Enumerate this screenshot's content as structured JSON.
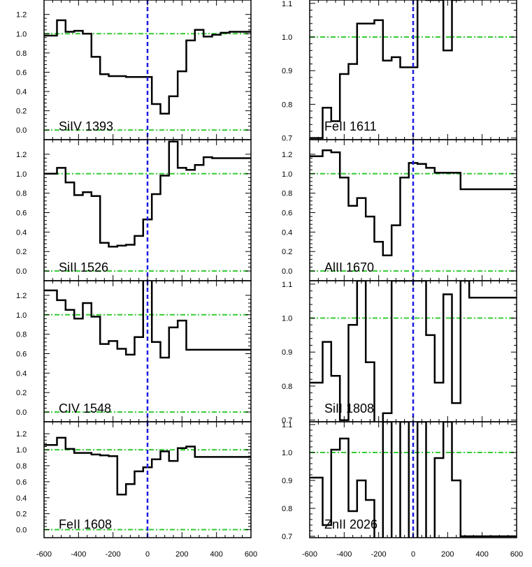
{
  "chart_data": [
    {
      "type": "line",
      "label": "SiIV 1393",
      "xlim": [
        -600,
        600
      ],
      "ylim": [
        -0.1,
        1.35
      ],
      "yticks": [
        0.0,
        0.2,
        0.4,
        0.6,
        0.8,
        1.0,
        1.2
      ],
      "ytick_labels": [
        "0.0",
        "0.2",
        "0.4",
        "0.6",
        "0.8",
        "1.0",
        "1.2"
      ],
      "x": [
        -600,
        -575,
        -525,
        -475,
        -425,
        -375,
        -325,
        -275,
        -225,
        -175,
        -125,
        -75,
        -25,
        25,
        75,
        125,
        175,
        225,
        275,
        325,
        375,
        425,
        475,
        525,
        575,
        600
      ],
      "y": [
        0.98,
        0.98,
        1.14,
        1.02,
        1.03,
        1.0,
        0.76,
        0.58,
        0.56,
        0.56,
        0.55,
        0.55,
        0.55,
        0.27,
        0.17,
        0.35,
        0.61,
        0.93,
        1.04,
        0.97,
        0.99,
        1.01,
        1.02,
        1.02,
        1.02,
        1.02
      ]
    },
    {
      "type": "line",
      "label": "SiII 1526",
      "xlim": [
        -600,
        600
      ],
      "ylim": [
        -0.1,
        1.35
      ],
      "yticks": [
        0.0,
        0.2,
        0.4,
        0.6,
        0.8,
        1.0,
        1.2
      ],
      "ytick_labels": [
        "0.0",
        "0.2",
        "0.4",
        "0.6",
        "0.8",
        "1.0",
        "1.2"
      ],
      "x": [
        -600,
        -575,
        -525,
        -475,
        -425,
        -375,
        -325,
        -275,
        -225,
        -175,
        -125,
        -75,
        -25,
        25,
        75,
        125,
        175,
        225,
        275,
        325,
        375,
        425,
        475,
        525,
        575,
        600
      ],
      "y": [
        1.0,
        1.0,
        1.06,
        0.91,
        0.78,
        0.81,
        0.77,
        0.29,
        0.25,
        0.26,
        0.27,
        0.36,
        0.53,
        0.79,
        0.98,
        1.33,
        1.06,
        1.04,
        1.09,
        1.17,
        1.16,
        1.16,
        1.16,
        1.16,
        1.16,
        1.16
      ]
    },
    {
      "type": "line",
      "label": "CIV 1548",
      "xlim": [
        -600,
        600
      ],
      "ylim": [
        -0.1,
        1.35
      ],
      "yticks": [
        0.0,
        0.2,
        0.4,
        0.6,
        0.8,
        1.0,
        1.2
      ],
      "ytick_labels": [
        "0.0",
        "0.2",
        "0.4",
        "0.6",
        "0.8",
        "1.0",
        "1.2"
      ],
      "x": [
        -600,
        -575,
        -525,
        -475,
        -425,
        -375,
        -325,
        -275,
        -225,
        -175,
        -125,
        -75,
        -25,
        25,
        75,
        125,
        175,
        225,
        275,
        325,
        375,
        425,
        475,
        525,
        575,
        600
      ],
      "y": [
        1.25,
        1.25,
        1.15,
        1.05,
        0.96,
        1.12,
        0.98,
        0.7,
        0.73,
        0.65,
        0.59,
        0.77,
        1.36,
        0.72,
        0.56,
        0.87,
        0.94,
        0.64,
        0.64,
        0.64,
        0.64,
        0.64,
        0.64,
        0.64,
        0.64,
        0.64
      ]
    },
    {
      "type": "line",
      "label": "FeII 1608",
      "xlim": [
        -600,
        600
      ],
      "ylim": [
        -0.1,
        1.35
      ],
      "yticks": [
        0.0,
        0.2,
        0.4,
        0.6,
        0.8,
        1.0,
        1.2
      ],
      "ytick_labels": [
        "0.0",
        "0.2",
        "0.4",
        "0.6",
        "0.8",
        "1.0",
        "1.2"
      ],
      "x": [
        -600,
        -575,
        -525,
        -475,
        -425,
        -375,
        -325,
        -275,
        -225,
        -175,
        -125,
        -75,
        -25,
        25,
        75,
        125,
        175,
        225,
        275,
        325,
        375,
        425,
        475,
        525,
        575,
        600
      ],
      "y": [
        1.06,
        1.06,
        1.15,
        1.01,
        0.96,
        0.96,
        0.94,
        0.93,
        0.92,
        0.44,
        0.57,
        0.73,
        0.78,
        0.88,
        0.98,
        0.86,
        1.02,
        1.04,
        0.91,
        0.91,
        0.91,
        0.91,
        0.91,
        0.91,
        0.91,
        0.91
      ]
    },
    {
      "type": "line",
      "label": "FeII 1611",
      "xlim": [
        -600,
        600
      ],
      "ylim": [
        0.695,
        1.11
      ],
      "yticks": [
        0.7,
        0.8,
        0.9,
        1.0,
        1.1
      ],
      "ytick_labels": [
        "0.7",
        "0.8",
        "0.9",
        "1.0",
        "1.1"
      ],
      "x": [
        -600,
        -575,
        -525,
        -475,
        -425,
        -375,
        -325,
        -275,
        -225,
        -175,
        -125,
        -75,
        -25,
        25,
        75,
        125,
        175,
        225,
        275,
        325,
        375,
        425,
        475,
        525,
        575,
        600
      ],
      "y": [
        0.7,
        0.7,
        0.79,
        0.75,
        0.89,
        0.92,
        1.04,
        1.04,
        1.05,
        0.93,
        0.94,
        0.91,
        0.91,
        1.12,
        1.11,
        1.11,
        0.96,
        1.11,
        1.12,
        1.12,
        1.12,
        1.12,
        1.12,
        1.12,
        1.12,
        1.12
      ]
    },
    {
      "type": "line",
      "label": "AlII 1670",
      "xlim": [
        -600,
        600
      ],
      "ylim": [
        -0.1,
        1.35
      ],
      "yticks": [
        0.0,
        0.2,
        0.4,
        0.6,
        0.8,
        1.0,
        1.2
      ],
      "ytick_labels": [
        "0.0",
        "0.2",
        "0.4",
        "0.6",
        "0.8",
        "1.0",
        "1.2"
      ],
      "x": [
        -600,
        -575,
        -525,
        -475,
        -425,
        -375,
        -325,
        -275,
        -225,
        -175,
        -125,
        -75,
        -25,
        25,
        75,
        125,
        175,
        225,
        275,
        325,
        375,
        425,
        475,
        525,
        575,
        600
      ],
      "y": [
        1.18,
        1.18,
        1.24,
        1.22,
        0.96,
        0.67,
        0.75,
        0.56,
        0.3,
        0.16,
        0.47,
        0.96,
        1.11,
        1.1,
        1.06,
        1.01,
        1.01,
        1.01,
        0.84,
        0.84,
        0.84,
        0.84,
        0.84,
        0.84,
        0.84,
        0.84
      ]
    },
    {
      "type": "line",
      "label": "SiII 1808",
      "xlim": [
        -600,
        600
      ],
      "ylim": [
        0.695,
        1.11
      ],
      "yticks": [
        0.7,
        0.8,
        0.9,
        1.0,
        1.1
      ],
      "ytick_labels": [
        "0.7",
        "0.8",
        "0.9",
        "1.0",
        "1.1"
      ],
      "x": [
        -600,
        -575,
        -525,
        -475,
        -425,
        -375,
        -325,
        -275,
        -225,
        -175,
        -125,
        -75,
        -25,
        25,
        75,
        125,
        175,
        225,
        275,
        325,
        375,
        425,
        475,
        525,
        575,
        600
      ],
      "y": [
        0.81,
        0.81,
        0.93,
        0.83,
        0.7,
        0.98,
        1.11,
        0.87,
        0.69,
        0.72,
        1.11,
        1.11,
        1.11,
        1.11,
        0.95,
        0.81,
        1.07,
        0.75,
        1.11,
        1.06,
        1.06,
        1.06,
        1.06,
        1.06,
        1.06,
        1.06
      ]
    },
    {
      "type": "line",
      "label": "ZnII 2026",
      "xlim": [
        -600,
        600
      ],
      "ylim": [
        0.695,
        1.11
      ],
      "yticks": [
        0.7,
        0.8,
        0.9,
        1.0,
        1.1
      ],
      "ytick_labels": [
        "0.7",
        "0.8",
        "0.9",
        "1.0",
        "1.1"
      ],
      "x": [
        -600,
        -575,
        -525,
        -475,
        -425,
        -375,
        -325,
        -275,
        -225,
        -175,
        -125,
        -75,
        -25,
        25,
        75,
        125,
        175,
        225,
        275,
        325,
        375,
        425,
        475,
        525,
        575,
        600
      ],
      "y": [
        0.91,
        0.91,
        0.74,
        1.01,
        1.05,
        0.79,
        0.9,
        0.83,
        0.69,
        1.11,
        0.69,
        1.11,
        0.69,
        1.11,
        0.69,
        0.98,
        1.11,
        0.9,
        0.7,
        0.7,
        0.7,
        0.7,
        0.7,
        0.7,
        0.7,
        0.7
      ]
    }
  ],
  "x_ticks": [
    -600,
    -400,
    -200,
    0,
    200,
    400,
    600
  ],
  "x_tick_labels": [
    "-600",
    "-400",
    "-200",
    "0",
    "200",
    "400",
    "600"
  ],
  "continuum_level": 1.0,
  "zero_level": 0.0,
  "reference_velocity": 0,
  "colors": {
    "spectrum": "#000000",
    "guide_lines": "#33cc33",
    "reference_line": "#1a1ae6",
    "axes": "#000000"
  }
}
